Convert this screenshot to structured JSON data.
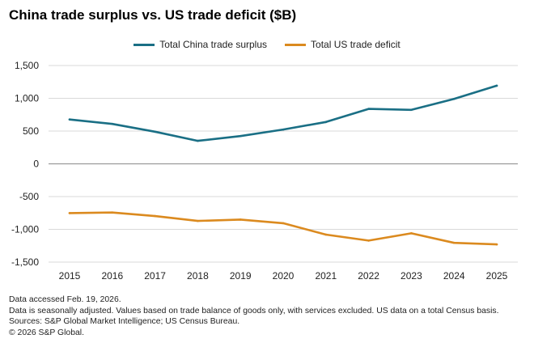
{
  "title": "China trade surplus vs. US trade deficit ($B)",
  "colors": {
    "china": "#1a6f85",
    "us": "#db8a1f",
    "grid": "#d9d9d9",
    "zero": "#9a9a9a"
  },
  "chart_data": {
    "type": "line",
    "title": "China trade surplus vs. US trade deficit ($B)",
    "xlabel": "",
    "ylabel": "",
    "x": [
      2015,
      2016,
      2017,
      2018,
      2019,
      2020,
      2021,
      2022,
      2023,
      2024,
      2025
    ],
    "ylim": [
      -1500,
      1500
    ],
    "yticks": [
      1500,
      1000,
      500,
      0,
      -500,
      -1000,
      -1500
    ],
    "ytick_labels": [
      "1,500",
      "1,000",
      "500",
      "0",
      "-500",
      "-1,000",
      "-1,500"
    ],
    "grid": true,
    "legend_position": "top-center",
    "series": [
      {
        "key": "china",
        "name": "Total China trade surplus",
        "color": "#1a6f85",
        "values": [
          677,
          609,
          490,
          351,
          424,
          523,
          638,
          838,
          824,
          990,
          1192
        ]
      },
      {
        "key": "us",
        "name": "Total US trade deficit",
        "color": "#db8a1f",
        "values": [
          -752,
          -743,
          -797,
          -872,
          -851,
          -906,
          -1080,
          -1172,
          -1060,
          -1206,
          -1230
        ]
      }
    ]
  },
  "footnotes": [
    "Data accessed Feb. 19, 2026.",
    "Data is seasonally adjusted. Values based on trade balance of goods only, with services excluded. US data on a total Census basis.",
    "Sources: S&P Global Market Intelligence; US Census Bureau.",
    "© 2026 S&P Global."
  ]
}
